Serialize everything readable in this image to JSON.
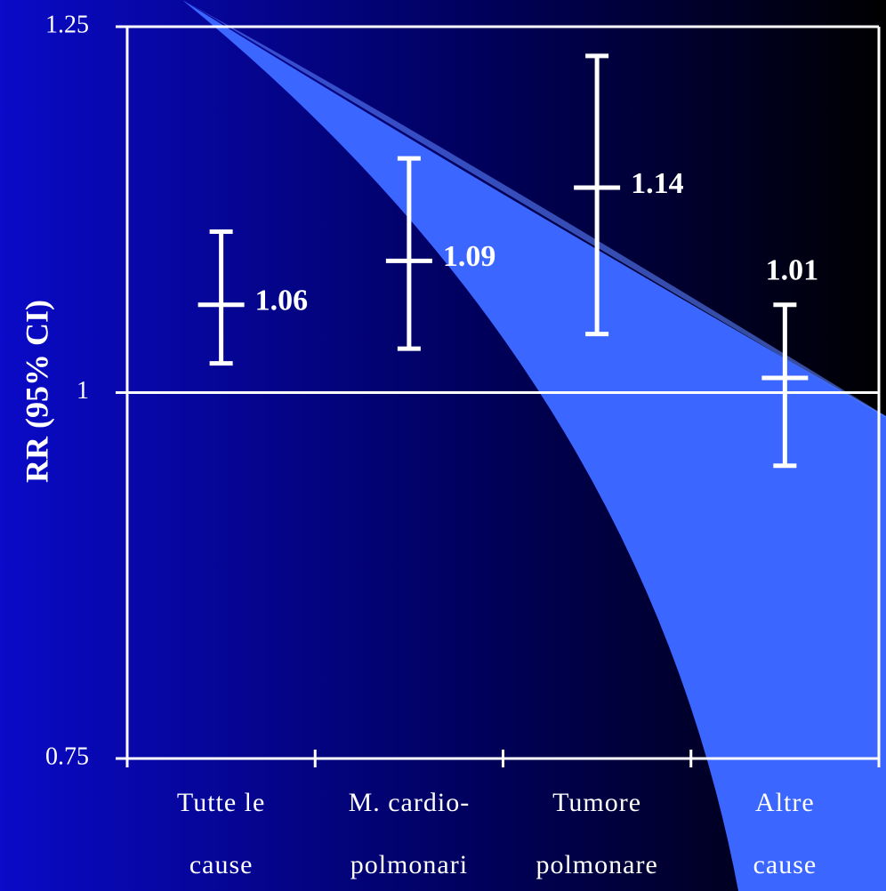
{
  "chart_data": {
    "type": "errorbar",
    "y_label": "RR (95% CI)",
    "categories": [
      [
        "Tutte le",
        "cause"
      ],
      [
        "M. cardio-",
        "polmonari"
      ],
      [
        "Tumore",
        "polmonare"
      ],
      [
        "Altre",
        "cause"
      ]
    ],
    "series": [
      {
        "color": "#ffffff",
        "values": [
          1.06,
          1.09,
          1.14,
          1.01
        ],
        "ci_low": [
          1.02,
          1.03,
          1.04,
          0.95
        ],
        "ci_high": [
          1.11,
          1.16,
          1.23,
          1.06
        ]
      }
    ],
    "reference_line": 1,
    "ylim": [
      0.75,
      1.25
    ],
    "yticks": [
      0.75,
      1,
      1.25
    ]
  }
}
